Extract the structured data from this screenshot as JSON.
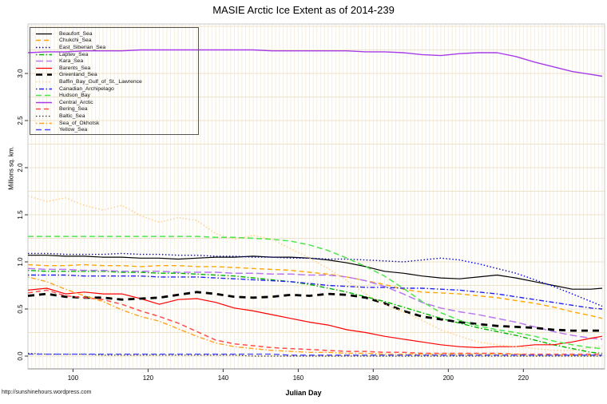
{
  "footer": {
    "url": "http://sunshinehours.wordpress.com"
  },
  "chart_data": {
    "type": "line",
    "title": "MASIE Arctic Ice Extent as of 2014-239",
    "xlabel": "Julian Day",
    "ylabel": "Millions sq. km.",
    "legend_position": "top-left",
    "grid": {
      "on": true,
      "vertical_step_days": 1,
      "horizontal_step": 0.25,
      "v_color": "#f4eede",
      "h_color": "#ece3c8"
    },
    "x_axis": {
      "min": 88,
      "max": 241,
      "ticks": [
        100,
        120,
        140,
        160,
        180,
        200,
        220
      ]
    },
    "y_axis": {
      "min": -0.13,
      "max": 3.53,
      "ticks": [
        "0.0",
        "0.5",
        "1.0",
        "1.5",
        "2.0",
        "2.5",
        "3.0"
      ]
    },
    "days": [
      88,
      93,
      98,
      103,
      108,
      113,
      118,
      123,
      128,
      133,
      138,
      143,
      148,
      153,
      158,
      163,
      168,
      173,
      178,
      183,
      188,
      193,
      198,
      203,
      208,
      213,
      218,
      223,
      228,
      233,
      238,
      241
    ],
    "series": [
      {
        "name": "Beaufort_Sea",
        "color": "#000000",
        "dash": "",
        "width": 1.2,
        "values": [
          1.07,
          1.07,
          1.06,
          1.06,
          1.05,
          1.05,
          1.04,
          1.04,
          1.03,
          1.04,
          1.05,
          1.05,
          1.06,
          1.05,
          1.05,
          1.04,
          1.02,
          0.99,
          0.95,
          0.9,
          0.88,
          0.85,
          0.83,
          0.82,
          0.84,
          0.86,
          0.83,
          0.79,
          0.75,
          0.71,
          0.71,
          0.72
        ]
      },
      {
        "name": "Chukchi_Sea",
        "color": "#FFA500",
        "dash": "6,4",
        "width": 1.4,
        "values": [
          0.97,
          0.96,
          0.96,
          0.97,
          0.96,
          0.96,
          0.95,
          0.96,
          0.96,
          0.95,
          0.95,
          0.94,
          0.93,
          0.92,
          0.91,
          0.89,
          0.87,
          0.84,
          0.8,
          0.76,
          0.71,
          0.68,
          0.67,
          0.66,
          0.64,
          0.62,
          0.59,
          0.56,
          0.52,
          0.47,
          0.43,
          0.4
        ]
      },
      {
        "name": "East_Siberian_Sea",
        "color": "#0000EE",
        "dash": "1.5,2.5",
        "width": 1.4,
        "values": [
          1.09,
          1.09,
          1.08,
          1.08,
          1.08,
          1.09,
          1.08,
          1.08,
          1.07,
          1.07,
          1.06,
          1.06,
          1.05,
          1.05,
          1.04,
          1.04,
          1.03,
          1.03,
          1.02,
          1.01,
          1.0,
          1.02,
          1.04,
          1.02,
          0.98,
          0.93,
          0.88,
          0.81,
          0.74,
          0.66,
          0.58,
          0.53
        ]
      },
      {
        "name": "Laptev_Sea",
        "color": "#00B400",
        "dash": "1.5,2.5,6,2.5",
        "width": 1.4,
        "values": [
          0.91,
          0.9,
          0.9,
          0.9,
          0.9,
          0.89,
          0.89,
          0.88,
          0.88,
          0.87,
          0.86,
          0.85,
          0.83,
          0.81,
          0.79,
          0.76,
          0.72,
          0.68,
          0.63,
          0.58,
          0.52,
          0.46,
          0.4,
          0.35,
          0.3,
          0.26,
          0.22,
          0.17,
          0.12,
          0.08,
          0.04,
          0.03
        ]
      },
      {
        "name": "Kara_Sea",
        "color": "#B878F0",
        "dash": "9,4",
        "width": 1.5,
        "values": [
          0.93,
          0.92,
          0.92,
          0.91,
          0.91,
          0.9,
          0.9,
          0.9,
          0.89,
          0.89,
          0.89,
          0.88,
          0.88,
          0.87,
          0.87,
          0.86,
          0.86,
          0.84,
          0.8,
          0.74,
          0.66,
          0.57,
          0.51,
          0.47,
          0.44,
          0.4,
          0.36,
          0.31,
          0.26,
          0.22,
          0.19,
          0.18
        ]
      },
      {
        "name": "Barents_Sea",
        "color": "#FF0000",
        "dash": "",
        "width": 1.2,
        "values": [
          0.7,
          0.72,
          0.66,
          0.68,
          0.66,
          0.66,
          0.61,
          0.55,
          0.6,
          0.61,
          0.57,
          0.51,
          0.48,
          0.44,
          0.4,
          0.36,
          0.33,
          0.28,
          0.25,
          0.21,
          0.18,
          0.15,
          0.12,
          0.1,
          0.09,
          0.1,
          0.1,
          0.12,
          0.12,
          0.15,
          0.19,
          0.21
        ]
      },
      {
        "name": "Greenland_Sea",
        "color": "#000000",
        "dash": "8,6",
        "width": 2.8,
        "values": [
          0.64,
          0.66,
          0.63,
          0.62,
          0.62,
          0.6,
          0.61,
          0.62,
          0.65,
          0.68,
          0.66,
          0.63,
          0.62,
          0.63,
          0.65,
          0.64,
          0.66,
          0.65,
          0.62,
          0.56,
          0.48,
          0.42,
          0.39,
          0.36,
          0.34,
          0.32,
          0.31,
          0.3,
          0.28,
          0.27,
          0.27,
          0.27
        ]
      },
      {
        "name": "Baffin_Bay_Gulf_of_St._Lawrence",
        "color": "#FFCF8C",
        "dash": "1.5,2.5",
        "width": 1.5,
        "values": [
          1.7,
          1.64,
          1.68,
          1.6,
          1.55,
          1.6,
          1.49,
          1.42,
          1.47,
          1.44,
          1.3,
          1.24,
          1.28,
          1.24,
          1.14,
          1.04,
          0.93,
          0.8,
          0.66,
          0.55,
          0.47,
          0.38,
          0.28,
          0.21,
          0.15,
          0.12,
          0.1,
          0.08,
          0.06,
          0.06,
          0.09,
          0.11
        ]
      },
      {
        "name": "Canadian_Archipelago",
        "color": "#2222EE",
        "dash": "1.5,2.5,6,2.5",
        "width": 1.4,
        "values": [
          0.86,
          0.86,
          0.86,
          0.85,
          0.85,
          0.85,
          0.85,
          0.84,
          0.84,
          0.84,
          0.83,
          0.82,
          0.81,
          0.8,
          0.79,
          0.77,
          0.75,
          0.74,
          0.73,
          0.73,
          0.72,
          0.72,
          0.71,
          0.7,
          0.68,
          0.66,
          0.63,
          0.6,
          0.57,
          0.54,
          0.51,
          0.5
        ]
      },
      {
        "name": "Hudson_Bay",
        "color": "#4CE64C",
        "dash": "7,4",
        "width": 1.5,
        "values": [
          1.27,
          1.27,
          1.27,
          1.27,
          1.27,
          1.27,
          1.27,
          1.27,
          1.27,
          1.27,
          1.26,
          1.26,
          1.25,
          1.24,
          1.22,
          1.18,
          1.12,
          1.04,
          0.95,
          0.85,
          0.72,
          0.58,
          0.46,
          0.38,
          0.32,
          0.28,
          0.25,
          0.21,
          0.16,
          0.12,
          0.09,
          0.08
        ]
      },
      {
        "name": "Central_Arctic",
        "color": "#A63CE8",
        "dash": "",
        "width": 1.4,
        "values": [
          3.22,
          3.23,
          3.23,
          3.24,
          3.24,
          3.24,
          3.25,
          3.25,
          3.25,
          3.25,
          3.25,
          3.25,
          3.25,
          3.24,
          3.24,
          3.24,
          3.24,
          3.24,
          3.23,
          3.23,
          3.22,
          3.2,
          3.19,
          3.21,
          3.22,
          3.22,
          3.18,
          3.12,
          3.07,
          3.02,
          2.99,
          2.97
        ]
      },
      {
        "name": "Bering_Sea",
        "color": "#FF4D4D",
        "dash": "6,4",
        "width": 1.5,
        "values": [
          0.67,
          0.7,
          0.64,
          0.62,
          0.6,
          0.55,
          0.48,
          0.42,
          0.35,
          0.26,
          0.17,
          0.13,
          0.11,
          0.09,
          0.08,
          0.07,
          0.06,
          0.05,
          0.05,
          0.04,
          0.04,
          0.03,
          0.03,
          0.03,
          0.03,
          0.03,
          0.02,
          0.02,
          0.02,
          0.02,
          0.02,
          0.02
        ]
      },
      {
        "name": "Baltic_Sea",
        "color": "#333333",
        "dash": "1.5,2.5",
        "width": 1.2,
        "values": [
          0.03,
          0.02,
          0.02,
          0.02,
          0.01,
          0.01,
          0.01,
          0.01,
          0.01,
          0.01,
          0.01,
          0.01,
          0.0,
          0.0,
          0.0,
          0.0,
          0.0,
          0.0,
          0.0,
          0.0,
          0.0,
          0.0,
          0.0,
          0.0,
          0.0,
          0.0,
          0.0,
          0.0,
          0.0,
          0.0,
          0.0,
          0.0
        ]
      },
      {
        "name": "Sea_of_Okhotsk",
        "color": "#FFA520",
        "dash": "1.5,2.5,6,2.5",
        "width": 1.4,
        "values": [
          0.84,
          0.79,
          0.71,
          0.64,
          0.58,
          0.49,
          0.42,
          0.37,
          0.29,
          0.21,
          0.14,
          0.1,
          0.08,
          0.06,
          0.05,
          0.04,
          0.04,
          0.03,
          0.03,
          0.02,
          0.02,
          0.02,
          0.02,
          0.02,
          0.02,
          0.02,
          0.02,
          0.01,
          0.01,
          0.01,
          0.01,
          0.01
        ]
      },
      {
        "name": "Yellow_Sea",
        "color": "#4A4AFF",
        "dash": "7,4",
        "width": 1.4,
        "values": [
          0.02,
          0.02,
          0.02,
          0.02,
          0.02,
          0.02,
          0.02,
          0.02,
          0.02,
          0.02,
          0.02,
          0.02,
          0.02,
          0.02,
          0.01,
          0.01,
          0.01,
          0.01,
          0.01,
          0.01,
          0.01,
          0.01,
          0.01,
          0.01,
          0.01,
          0.01,
          0.01,
          0.01,
          0.01,
          0.01,
          0.01,
          0.01
        ]
      }
    ]
  }
}
